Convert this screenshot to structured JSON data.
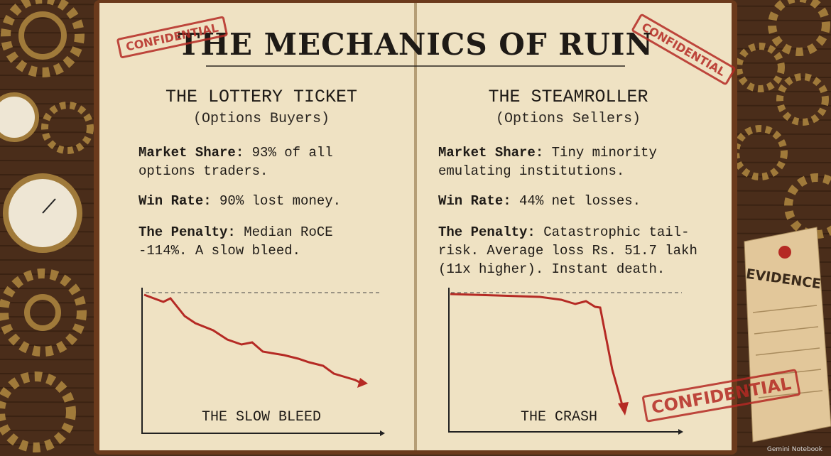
{
  "header": {
    "title": "THE MECHANICS OF RUIN"
  },
  "stamps": [
    "CONFIDENTIAL",
    "CONFIDENTIAL",
    "CONFIDENTIAL"
  ],
  "pages": [
    {
      "title": "THE LOTTERY TICKET",
      "subtitle": "(Options Buyers)",
      "facts": [
        {
          "label": "Market Share:",
          "text": "93% of all options traders."
        },
        {
          "label": "Win Rate:",
          "text": "90% lost money."
        },
        {
          "label": "The Penalty:",
          "text": "Median RoCE -114%. A slow bleed."
        }
      ],
      "sketch_label": "THE SLOW BLEED"
    },
    {
      "title": "THE STEAMROLLER",
      "subtitle": "(Options Sellers)",
      "facts": [
        {
          "label": "Market Share:",
          "text": "Tiny minority emulating institutions."
        },
        {
          "label": "Win Rate:",
          "text": "44% net losses."
        },
        {
          "label": "The Penalty:",
          "text": "Catastrophic tail-risk. Average loss Rs. 51.7 lakh (11x higher). Instant death."
        }
      ],
      "sketch_label": "THE CRASH"
    }
  ],
  "tag": "EVIDENCE",
  "watermark": "Gemini Notebook"
}
